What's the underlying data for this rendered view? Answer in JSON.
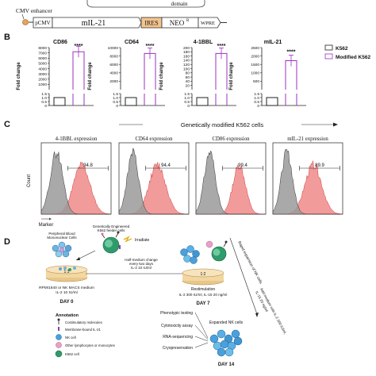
{
  "panelA": {
    "domain_label": "domain",
    "cmv_enhancer": "CMV enhancer",
    "segments": [
      "pCMV",
      "mIL-21",
      "IRES",
      "NEO",
      "WPRE"
    ],
    "neo_superscript": "R"
  },
  "panelB": {
    "letter": "B",
    "ylabel": "Fold change",
    "significance": "****",
    "legend": [
      {
        "name": "K562",
        "color": "#222222"
      },
      {
        "name": "Modified K562",
        "color": "#9b30c0"
      }
    ]
  },
  "chart_data": [
    {
      "type": "bar",
      "title": "CD86",
      "categories": [
        "K562",
        "Modified K562"
      ],
      "values": [
        1,
        7200
      ],
      "yticks": [
        "0",
        "0.5",
        "1.0",
        "1.5",
        "1000",
        "2000",
        "3000",
        "4000",
        "5000",
        "6000",
        "7000",
        "8000"
      ]
    },
    {
      "type": "bar",
      "title": "CD64",
      "categories": [
        "K562",
        "Modified K562"
      ],
      "values": [
        1,
        8600
      ],
      "yticks": [
        "0",
        "0.5",
        "1.0",
        "1.5",
        "2000",
        "4000",
        "6000",
        "8000",
        "10000"
      ]
    },
    {
      "type": "bar",
      "title": "4-1BBL",
      "categories": [
        "K562",
        "Modified K562"
      ],
      "values": [
        1,
        172
      ],
      "yticks": [
        "0",
        "0.5",
        "1.0",
        "1.5",
        "20",
        "40",
        "60",
        "80",
        "100",
        "120",
        "140",
        "160",
        "180",
        "200"
      ]
    },
    {
      "type": "bar",
      "title": "mIL-21",
      "categories": [
        "K562",
        "Modified K562"
      ],
      "values": [
        1,
        1720
      ],
      "yticks": [
        "0",
        "0.5",
        "1.0",
        "1.5",
        "500",
        "1000",
        "1500",
        "2000",
        "2500"
      ]
    }
  ],
  "panelC": {
    "letter": "C",
    "header": "Genetically modified K562 cells",
    "plots": [
      {
        "title": "4-1BBL expression",
        "percent": "94.8"
      },
      {
        "title": "CD64 expression",
        "percent": "94.4"
      },
      {
        "title": "CD86 expression",
        "percent": "99.4"
      },
      {
        "title": "mIL-21 expression",
        "percent": "89.9"
      }
    ],
    "ylabel": "Count",
    "xlabel": "Marker"
  },
  "panelD": {
    "letter": "D",
    "pbmc_label": [
      "Peripheral Blood",
      "Mononuclear Cells"
    ],
    "feeder_label": [
      "Genetically Engineered",
      "K562 feeder cells"
    ],
    "irradiate": "Irradiate",
    "ratio1": "1:1",
    "ratio2": "1:2",
    "medium": [
      "RPMI1640 or NK MACS medium",
      "IL-2 10 IU/ml"
    ],
    "halfchange": [
      "Half-medium change",
      "every two days",
      "IL-2 10 IU/ml"
    ],
    "restim": [
      "Restimulation",
      "IL-2 300 IU/ml, IL-15 20 ng/ml"
    ],
    "day0": "DAY 0",
    "day7": "DAY 7",
    "day14": "DAY 14",
    "rapid": "Rapid expansion of NK cells",
    "addmedium": [
      "Add medium with IL-2 300 IU/ml,",
      "IL-15 20 ng/ml"
    ],
    "expanded": "Expanded NK cells",
    "assays": [
      "Phenotypic testing",
      "Cytotoxicity assay",
      "RNA-sequencing",
      "Cryopreservation"
    ],
    "annotation_title": "Annotation",
    "annotation_items": [
      "Costimulatory molecules",
      "Membrane-bound IL-21",
      "NK cell",
      "Other lymphocytes or monocytes",
      "K562 cell"
    ]
  }
}
